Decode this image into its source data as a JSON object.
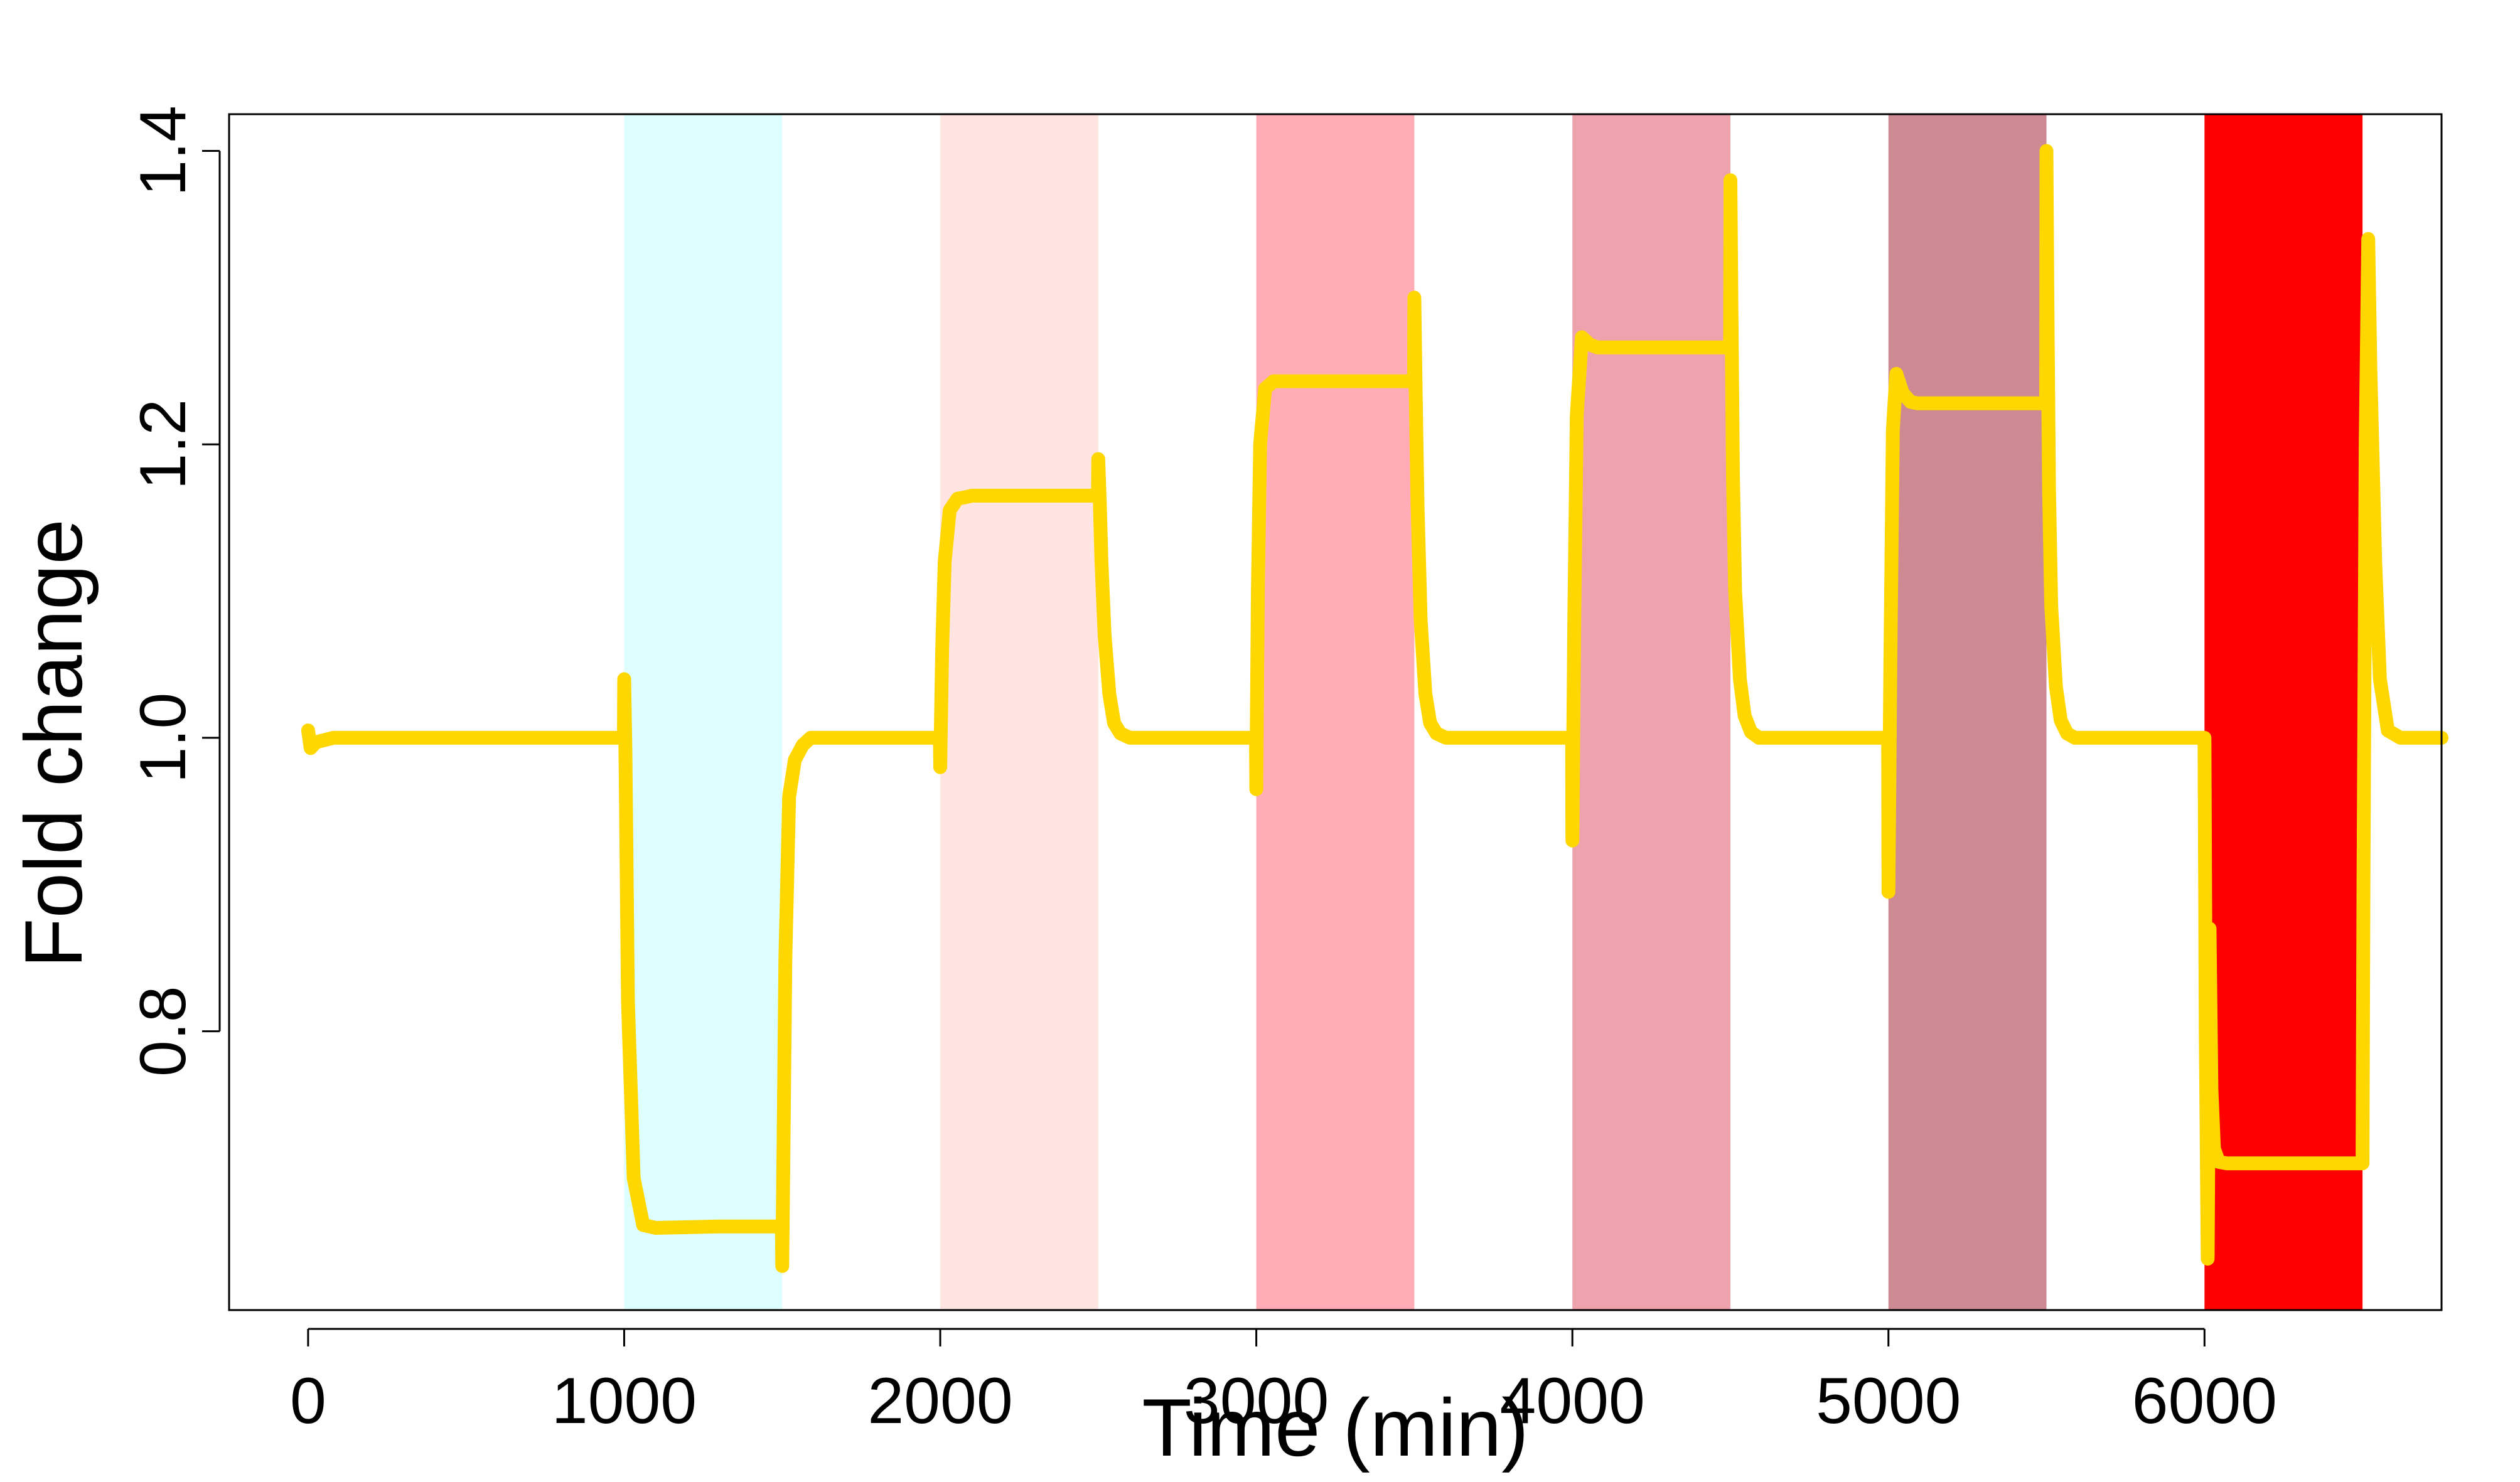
{
  "chart_data": {
    "type": "line",
    "title": "",
    "xlabel": "Time (min)",
    "ylabel": "Fold change",
    "xlim": [
      -250,
      6750
    ],
    "ylim": [
      0.61,
      1.425
    ],
    "x_ticks": [
      0,
      1000,
      2000,
      3000,
      4000,
      5000,
      6000
    ],
    "x_tick_labels": [
      "0",
      "1000",
      "2000",
      "3000",
      "4000",
      "5000",
      "6000"
    ],
    "y_ticks": [
      0.8,
      1.0,
      1.2,
      1.4
    ],
    "y_tick_labels": [
      "0.8",
      "1.0",
      "1.2",
      "1.4"
    ],
    "grid": false,
    "legend": "none",
    "line_color": "#FFD700",
    "shaded_intervals": [
      {
        "start": 1000,
        "end": 1500,
        "color": "#DDFFFF"
      },
      {
        "start": 2000,
        "end": 2500,
        "color": "#FFE4E1"
      },
      {
        "start": 3000,
        "end": 3500,
        "color": "#FFACB7"
      },
      {
        "start": 4000,
        "end": 4500,
        "color": "#EEA2AD"
      },
      {
        "start": 5000,
        "end": 5500,
        "color": "#CD8A93"
      },
      {
        "start": 6000,
        "end": 6500,
        "color": "#FF0000"
      }
    ],
    "series": [
      {
        "x": [
          0,
          8,
          25,
          80,
          200,
          500,
          999,
          1000,
          1004,
          1012,
          1030,
          1060,
          1100,
          1300,
          1499,
          1500,
          1504,
          1510,
          1522,
          1540,
          1565,
          1590,
          1620,
          1700,
          1999,
          2000,
          2006,
          2014,
          2030,
          2055,
          2080,
          2100,
          2130,
          2499,
          2500,
          2505,
          2510,
          2520,
          2535,
          2550,
          2570,
          2600,
          2650,
          2999,
          3000,
          3005,
          3012,
          3028,
          3055,
          3080,
          3120,
          3499,
          3500,
          3504,
          3510,
          3520,
          3535,
          3550,
          3570,
          3600,
          3650,
          3999,
          4000,
          4006,
          4014,
          4030,
          4055,
          4080,
          4120,
          4499,
          4500,
          4503,
          4508,
          4515,
          4530,
          4545,
          4565,
          4590,
          4640,
          4999,
          5000,
          5006,
          5014,
          5025,
          5045,
          5070,
          5090,
          5130,
          5499,
          5500,
          5503,
          5508,
          5515,
          5530,
          5545,
          5565,
          5590,
          5640,
          5999,
          6000,
          6004,
          6010,
          6016,
          6022,
          6030,
          6045,
          6070,
          6100,
          6499,
          6500,
          6503,
          6510,
          6518,
          6525,
          6540,
          6555,
          6580,
          6620,
          6750
        ],
        "y": [
          1.005,
          0.993,
          0.997,
          1.0,
          1.0,
          1.0,
          1.0,
          1.04,
          0.99,
          0.82,
          0.7,
          0.668,
          0.666,
          0.667,
          0.667,
          0.64,
          0.72,
          0.85,
          0.96,
          0.985,
          0.995,
          1.0,
          1.0,
          1.0,
          1.0,
          0.98,
          1.06,
          1.12,
          1.155,
          1.163,
          1.164,
          1.165,
          1.165,
          1.165,
          1.19,
          1.16,
          1.12,
          1.07,
          1.03,
          1.01,
          1.003,
          1.0,
          1.0,
          1.0,
          0.965,
          1.1,
          1.2,
          1.238,
          1.243,
          1.243,
          1.243,
          1.243,
          1.3,
          1.24,
          1.16,
          1.08,
          1.03,
          1.01,
          1.003,
          1.0,
          1.0,
          1.0,
          0.93,
          1.08,
          1.22,
          1.273,
          1.268,
          1.266,
          1.266,
          1.266,
          1.38,
          1.3,
          1.18,
          1.1,
          1.04,
          1.015,
          1.004,
          1.0,
          1.0,
          1.0,
          0.895,
          1.05,
          1.21,
          1.248,
          1.235,
          1.229,
          1.228,
          1.228,
          1.228,
          1.4,
          1.3,
          1.17,
          1.09,
          1.035,
          1.012,
          1.003,
          1.0,
          1.0,
          1.0,
          1.0,
          0.8,
          0.645,
          0.87,
          0.76,
          0.72,
          0.711,
          0.71,
          0.71,
          0.71,
          0.71,
          0.9,
          1.2,
          1.34,
          1.25,
          1.12,
          1.04,
          1.005,
          1.0,
          1.0
        ]
      }
    ]
  }
}
